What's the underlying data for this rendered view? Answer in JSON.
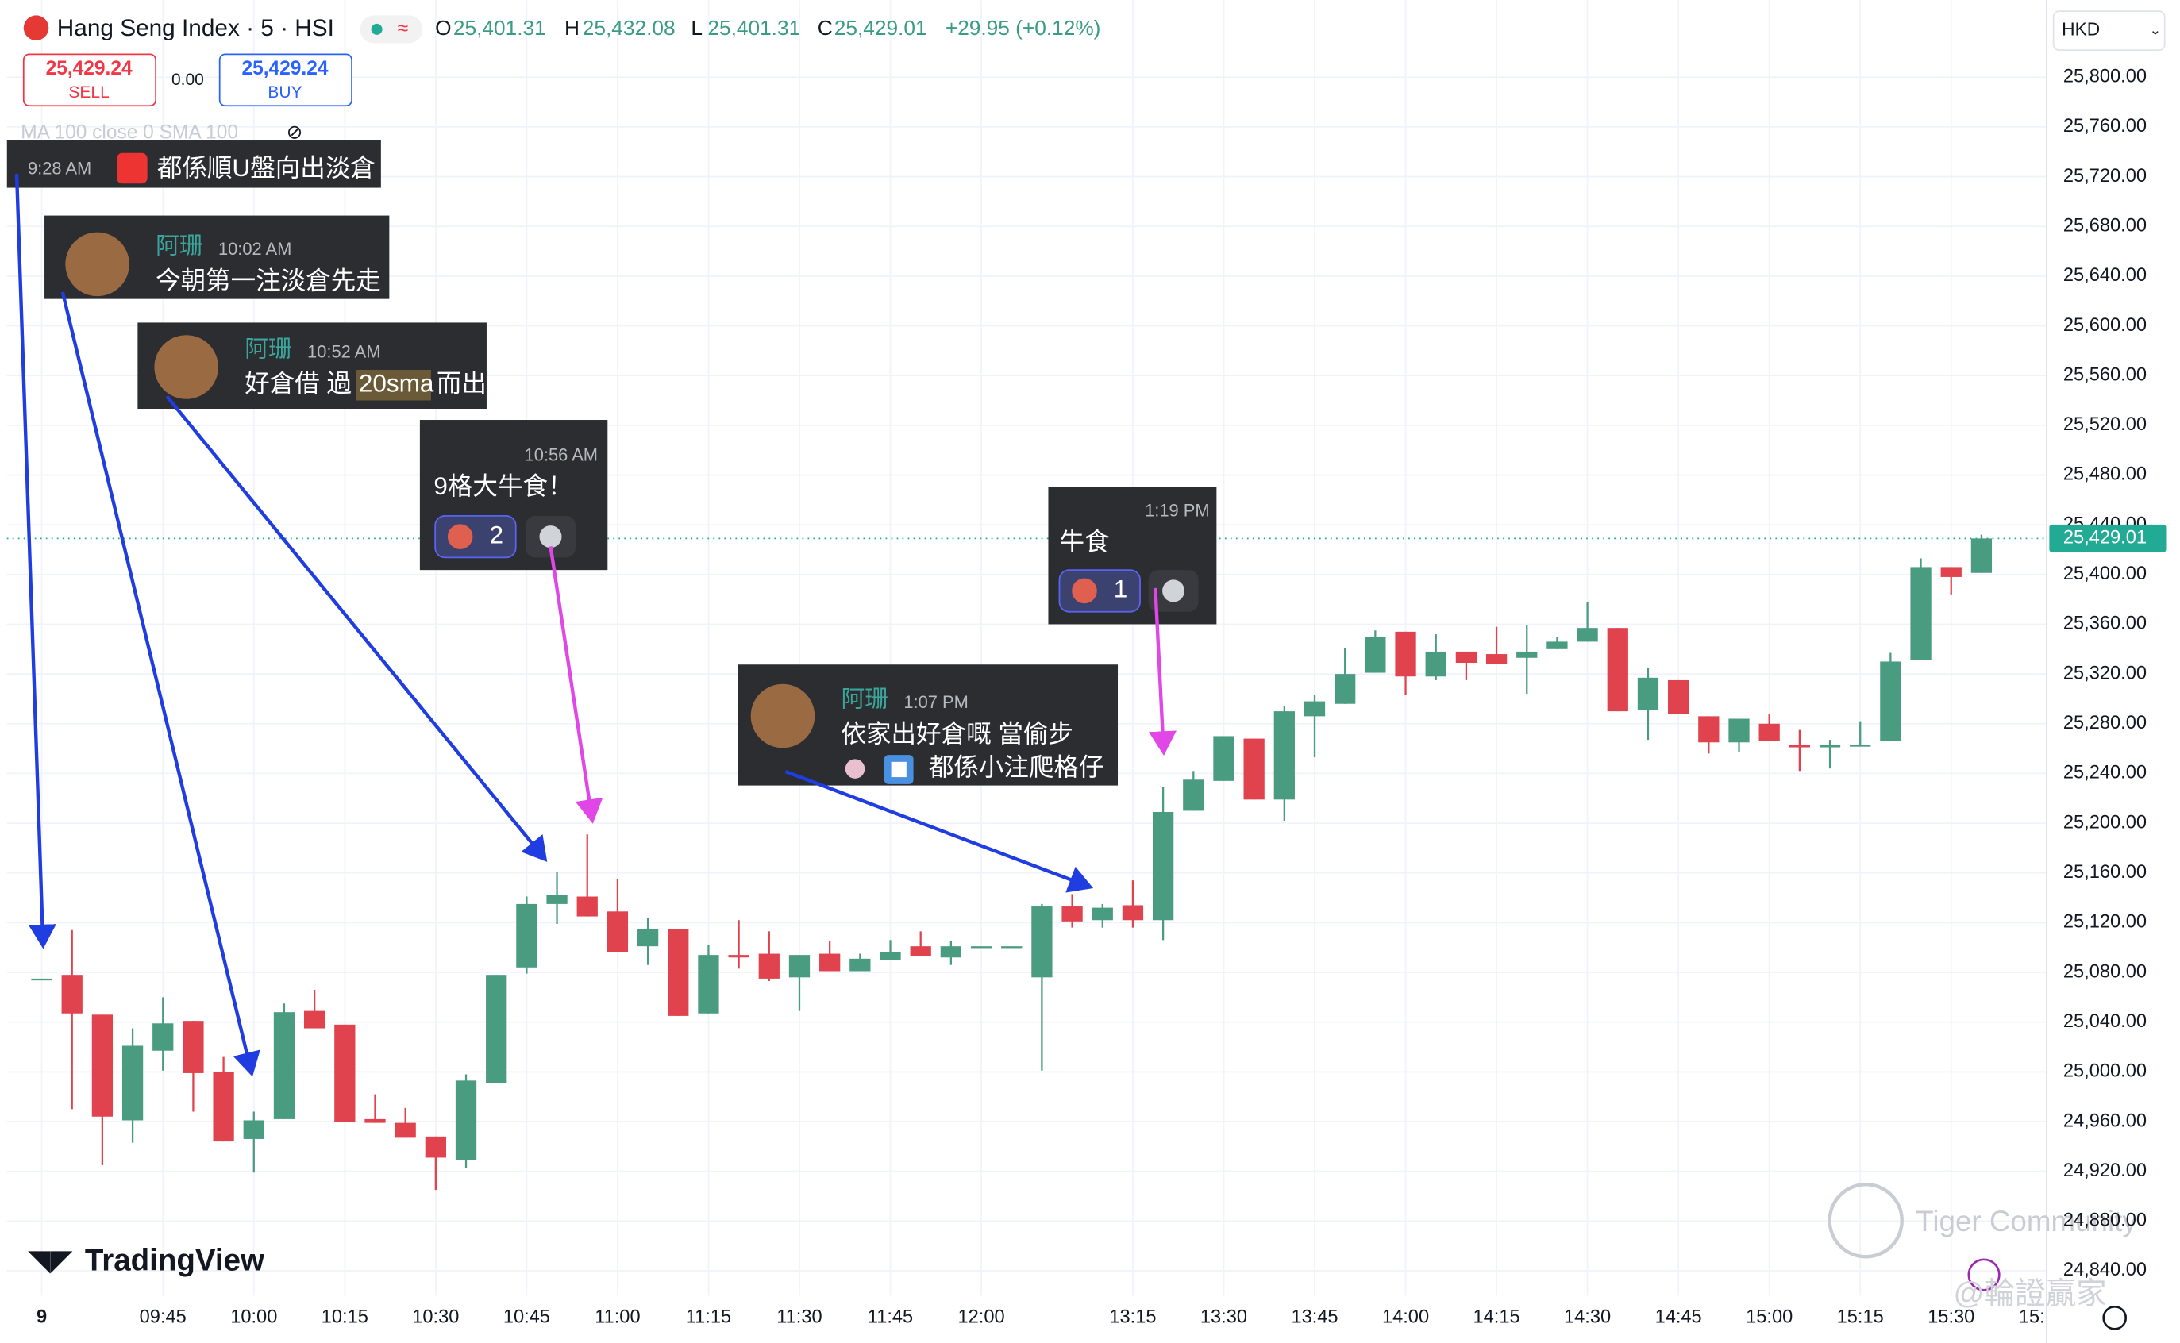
{
  "header": {
    "symbol": "Hang Seng Index · 5 · HSI",
    "open_label": "O",
    "open": "25,401.31",
    "high_label": "H",
    "high": "25,432.08",
    "low_label": "L",
    "low": "25,401.31",
    "close_label": "C",
    "close": "25,429.01",
    "change": "+29.95 (+0.12%)",
    "sell_price": "25,429.24",
    "sell": "SELL",
    "spread": "0.00",
    "buy_price": "25,429.24",
    "buy": "BUY",
    "indicator": "MA 100 close 0 SMA 100",
    "currency": "HKD",
    "logo": "TradingView",
    "watermark": "Tiger Community",
    "watermark2": "@輪證贏家"
  },
  "chart_data": {
    "type": "candlestick",
    "up_color": "#4a9c80",
    "down_color": "#e0434e",
    "grid": true,
    "categories": [
      "9",
      null,
      null,
      null,
      "09:45",
      null,
      null,
      "10:00",
      null,
      null,
      "10:15",
      null,
      null,
      "10:30",
      null,
      null,
      "10:45",
      null,
      null,
      "11:00",
      null,
      null,
      "11:15",
      null,
      null,
      "11:30",
      null,
      null,
      "11:45",
      null,
      null,
      "12:00",
      null,
      null,
      null,
      null,
      "13:15",
      null,
      null,
      "13:30",
      null,
      null,
      "13:45",
      null,
      null,
      "14:00",
      null,
      null,
      "14:15",
      null,
      null,
      "14:30",
      null,
      null,
      "14:45",
      null,
      null,
      "15:00",
      null,
      null,
      "15:15",
      null,
      null,
      "15:30",
      null
    ],
    "clipped_tick_label": "15:",
    "open": [
      25075,
      25078,
      25046,
      24961,
      25017,
      25041,
      25000,
      24946,
      24962,
      25049,
      25038,
      24962,
      24959,
      24948,
      24929,
      24991,
      25084,
      25135,
      25141,
      25129,
      25101,
      25115,
      25047,
      25094,
      25095,
      25076,
      25095,
      25081,
      25090,
      25101,
      25092,
      25101,
      25101,
      25076,
      25133,
      25122,
      25134,
      25122,
      25210,
      25234,
      25268,
      25219,
      25286,
      25296,
      25321,
      25354,
      25318,
      25338,
      25336,
      25333,
      25340,
      25346,
      25357,
      25291,
      25315,
      25286,
      25265,
      25280,
      25263,
      25261,
      25263,
      25266,
      25331,
      25406,
      25401.31
    ],
    "high": [
      25075,
      25114,
      25046,
      25035,
      25060,
      25041,
      25012,
      24968,
      25055,
      25066,
      25038,
      24982,
      24971,
      24948,
      24998,
      25078,
      25141,
      25161,
      25191,
      25155,
      25124,
      25115,
      25102,
      25122,
      25113,
      25094,
      25105,
      25095,
      25106,
      25113,
      25105,
      25101,
      25101,
      25135,
      25143,
      25135,
      25154,
      25229,
      25242,
      25270,
      25268,
      25294,
      25303,
      25341,
      25355,
      25354,
      25352,
      25338,
      25358,
      25359,
      25350,
      25378,
      25357,
      25325,
      25315,
      25286,
      25284,
      25288,
      25275,
      25267,
      25282,
      25337,
      25413,
      25406,
      25432.08
    ],
    "low": [
      25075,
      24970,
      24925,
      24943,
      25001,
      24968,
      24944,
      24919,
      24962,
      25035,
      24960,
      24959,
      24947,
      24905,
      24923,
      24991,
      25079,
      25119,
      25125,
      25096,
      25086,
      25045,
      25047,
      25083,
      25073,
      25049,
      25081,
      25081,
      25090,
      25093,
      25086,
      25101,
      25101,
      25001,
      25116,
      25116,
      25116,
      25106,
      25210,
      25234,
      25219,
      25202,
      25253,
      25296,
      25321,
      25303,
      25315,
      25315,
      25328,
      25304,
      25340,
      25346,
      25290,
      25267,
      25288,
      25256,
      25257,
      25266,
      25242,
      25244,
      25263,
      25266,
      25331,
      25384,
      25401.31
    ],
    "close": [
      25075,
      25047,
      24964,
      25021,
      25039,
      24999,
      24944,
      24961,
      25048,
      25035,
      24960,
      24959,
      24947,
      24931,
      24993,
      25078,
      25135,
      25142,
      25125,
      25096,
      25115,
      25045,
      25094,
      25092,
      25075,
      25094,
      25081,
      25091,
      25096,
      25093,
      25101,
      25101,
      25101,
      25133,
      25121,
      25132,
      25122,
      25209,
      25235,
      25270,
      25219,
      25290,
      25298,
      25320,
      25350,
      25318,
      25338,
      25329,
      25328,
      25338,
      25346,
      25357,
      25290,
      25317,
      25288,
      25265,
      25284,
      25266,
      25261,
      25263,
      25263,
      25330,
      25406,
      25398,
      25429.01
    ],
    "ylim": [
      24820,
      25862
    ],
    "yticks": [
      {
        "value": 25800,
        "label": "25,800.00"
      },
      {
        "value": 25760,
        "label": "25,760.00"
      },
      {
        "value": 25720,
        "label": "25,720.00"
      },
      {
        "value": 25680,
        "label": "25,680.00"
      },
      {
        "value": 25640,
        "label": "25,640.00"
      },
      {
        "value": 25600,
        "label": "25,600.00"
      },
      {
        "value": 25560,
        "label": "25,560.00"
      },
      {
        "value": 25520,
        "label": "25,520.00"
      },
      {
        "value": 25480,
        "label": "25,480.00"
      },
      {
        "value": 25440,
        "label": "25,440.00"
      },
      {
        "value": 25400,
        "label": "25,400.00"
      },
      {
        "value": 25360,
        "label": "25,360.00"
      },
      {
        "value": 25320,
        "label": "25,320.00"
      },
      {
        "value": 25280,
        "label": "25,280.00"
      },
      {
        "value": 25240,
        "label": "25,240.00"
      },
      {
        "value": 25200,
        "label": "25,200.00"
      },
      {
        "value": 25160,
        "label": "25,160.00"
      },
      {
        "value": 25120,
        "label": "25,120.00"
      },
      {
        "value": 25080,
        "label": "25,080.00"
      },
      {
        "value": 25040,
        "label": "25,040.00"
      },
      {
        "value": 25000,
        "label": "25,000.00"
      },
      {
        "value": 24960,
        "label": "24,960.00"
      },
      {
        "value": 24920,
        "label": "24,920.00"
      },
      {
        "value": 24880,
        "label": "24,880.00"
      },
      {
        "value": 24840,
        "label": "24,840.00"
      }
    ],
    "last_price": {
      "value": 25429.01,
      "label": "25,429.01"
    }
  },
  "comments": [
    {
      "time": "9:28 AM",
      "text": "都係順U盤向出淡倉"
    },
    {
      "author": "阿珊",
      "time": "10:02 AM",
      "text": "今朝第一注淡倉先走"
    },
    {
      "author": "阿珊",
      "time": "10:52 AM",
      "text": "好倉借 過",
      "highlight": "20sma",
      "text_end": "而出"
    },
    {
      "time": "10:56 AM",
      "text": "9格大牛食！",
      "reaction_count": 2
    },
    {
      "time": "1:19 PM",
      "text": "牛食",
      "reaction_count": 1
    },
    {
      "author": "阿珊",
      "time": "1:07 PM",
      "text": "依家出好倉嘅 當偷步",
      "text2": "都係小注爬格仔"
    }
  ]
}
